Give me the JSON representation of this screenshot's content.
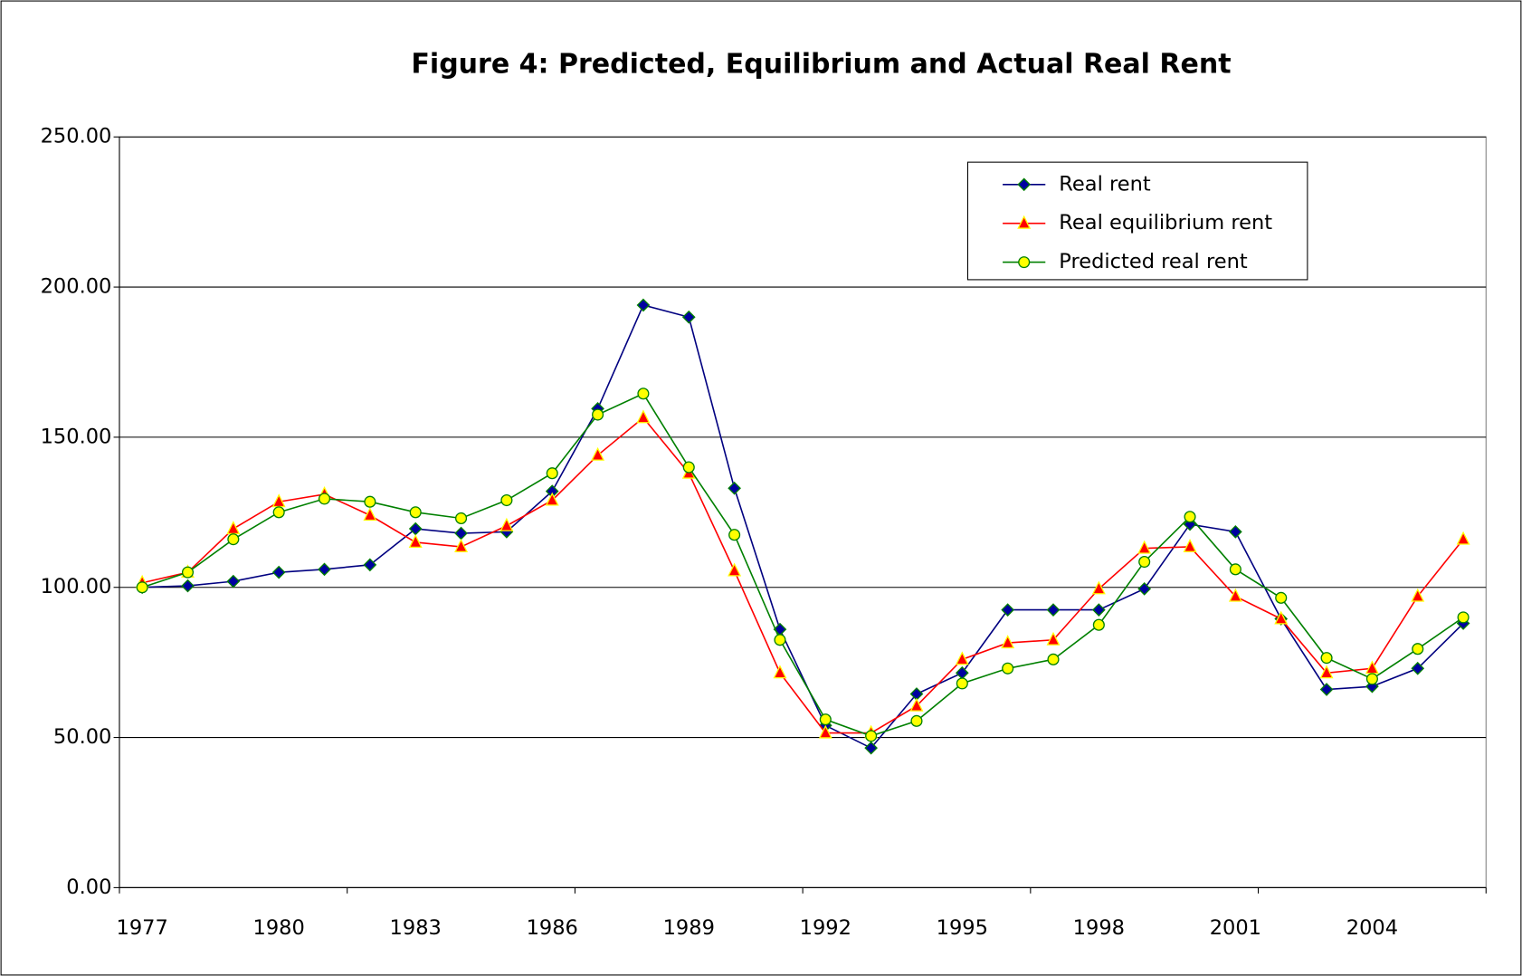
{
  "chart_data": {
    "type": "line",
    "title": "Figure 4:  Predicted, Equilibrium and Actual Real Rent",
    "categories": [
      "1977",
      null,
      null,
      "1980",
      null,
      null,
      "1983",
      null,
      null,
      "1986",
      null,
      null,
      "1989",
      null,
      null,
      "1992",
      null,
      null,
      "1995",
      null,
      null,
      "1998",
      null,
      null,
      "2001",
      null,
      null,
      "2004",
      null,
      null
    ],
    "series": [
      {
        "name": "Real rent",
        "color": "#000080",
        "marker": "diamond",
        "marker_fill": "#0000a0",
        "marker_stroke": "#008000",
        "values": [
          100,
          100.5,
          102,
          105,
          106,
          107.5,
          119.5,
          118,
          118.5,
          132,
          159.5,
          194,
          190,
          133,
          86,
          54,
          46.5,
          64.5,
          71.5,
          92.5,
          92.5,
          92.5,
          99.5,
          121,
          118.5,
          89.5,
          66,
          67,
          73,
          88
        ]
      },
      {
        "name": "Real equilibrium rent",
        "color": "#ff0000",
        "marker": "triangle",
        "marker_fill": "#ff0000",
        "marker_stroke": "#ffff00",
        "values": [
          101.5,
          105,
          119.5,
          128.5,
          131,
          124,
          115,
          113.5,
          120.5,
          129,
          144,
          156.5,
          138,
          105.5,
          71.5,
          51.5,
          51.5,
          60.5,
          76,
          81.5,
          82.5,
          99.5,
          113,
          113.5,
          97,
          89.5,
          71.5,
          73,
          97,
          116
        ]
      },
      {
        "name": "Predicted real rent",
        "color": "#008000",
        "marker": "circle",
        "marker_fill": "#ffff00",
        "marker_stroke": "#008000",
        "values": [
          100,
          105,
          116,
          125,
          129.5,
          128.5,
          125,
          123,
          129,
          138,
          157.5,
          164.5,
          140,
          117.5,
          82.5,
          56,
          50.5,
          55.5,
          68,
          73,
          76,
          87.5,
          108.5,
          123.5,
          106,
          96.5,
          76.5,
          69.5,
          79.5,
          90
        ]
      }
    ],
    "ylim": [
      0,
      250
    ],
    "yticks": [
      {
        "value": 0,
        "label": "0.00"
      },
      {
        "value": 50,
        "label": "50.00"
      },
      {
        "value": 100,
        "label": "100.00"
      },
      {
        "value": 150,
        "label": "150.00"
      },
      {
        "value": 200,
        "label": "200.00"
      },
      {
        "value": 250,
        "label": "250.00"
      }
    ],
    "grid": true,
    "legend": "top-right"
  }
}
